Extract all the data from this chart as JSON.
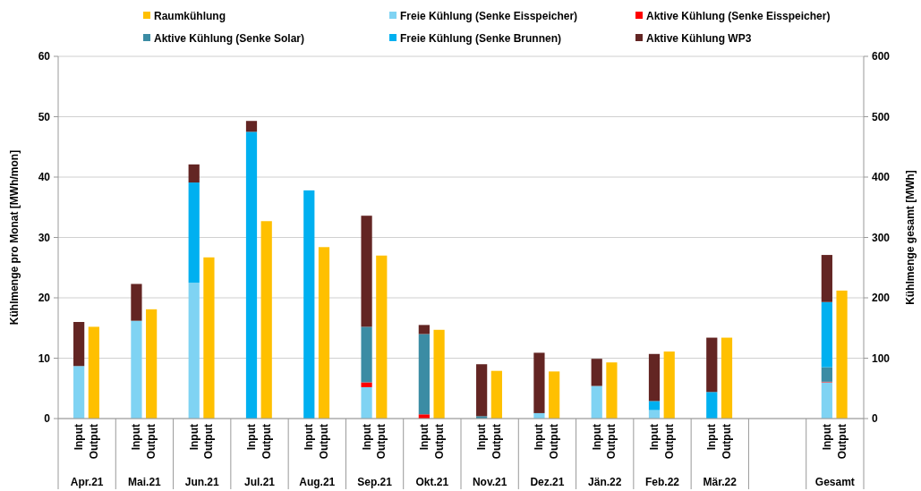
{
  "chart_data": {
    "type": "bar",
    "stacked": true,
    "ylabel": "Kühlmenge pro Monat [MWh/mon]",
    "y2label": "Kühlmenge gesamt [MWh]",
    "categories": [
      "Input",
      "Output",
      "Input",
      "Output",
      "Input",
      "Output",
      "Input",
      "Output",
      "Input",
      "Output",
      "Input",
      "Output",
      "Input",
      "Output",
      "Input",
      "Output",
      "Input",
      "Output",
      "Input",
      "Output",
      "Input",
      "Output",
      "Input",
      "Output",
      null,
      null,
      "Input",
      "Output"
    ],
    "annotations": [
      "Apr.21",
      "Mai.21",
      "Jun.21",
      "Jul.21",
      "Aug.21",
      "Sep.21",
      "Okt.21",
      "Nov.21",
      "Dez.21",
      "Jän.22",
      "Feb.22",
      "Mär.22",
      "Gesamt"
    ],
    "ylim": [
      0,
      60
    ],
    "yticks": [
      0,
      10,
      20,
      30,
      40,
      50,
      60
    ],
    "y2lim": [
      0,
      600
    ],
    "y2ticks": [
      0,
      100,
      200,
      300,
      400,
      500,
      600
    ],
    "grid": "y",
    "legend": "top",
    "series": [
      {
        "name": "Raumkühlung",
        "color": "#ffc000",
        "values": [
          null,
          15.2,
          null,
          18.1,
          null,
          26.7,
          null,
          32.7,
          null,
          28.4,
          null,
          27.0,
          null,
          14.7,
          null,
          7.9,
          null,
          7.8,
          null,
          9.3,
          null,
          11.1,
          null,
          13.4,
          null,
          null,
          null,
          null
        ]
      },
      {
        "name": "Freie Kühlung (Senke Eisspeicher)",
        "color": "#7fd3f3",
        "values": [
          8.7,
          null,
          16.2,
          null,
          22.5,
          null,
          null,
          null,
          null,
          null,
          5.2,
          null,
          null,
          null,
          null,
          null,
          0.9,
          null,
          5.4,
          null,
          1.4,
          null,
          null,
          null,
          null,
          null,
          null,
          null
        ]
      },
      {
        "name": "Aktive Kühlung (Senke Eisspeicher)",
        "color": "#ff0000",
        "values": [
          null,
          null,
          null,
          null,
          null,
          null,
          null,
          null,
          null,
          null,
          0.8,
          null,
          0.7,
          null,
          null,
          null,
          null,
          null,
          null,
          null,
          null,
          null,
          null,
          null,
          null,
          null,
          null,
          null
        ]
      },
      {
        "name": "Aktive Kühlung (Senke Solar)",
        "color": "#3b8ca4",
        "values": [
          null,
          null,
          null,
          null,
          null,
          null,
          null,
          null,
          null,
          null,
          9.2,
          null,
          13.3,
          null,
          0.4,
          null,
          null,
          null,
          null,
          null,
          null,
          null,
          null,
          null,
          null,
          null,
          null,
          null
        ]
      },
      {
        "name": "Freie Kühlung (Senke Brunnen)",
        "color": "#00b0f0",
        "values": [
          null,
          null,
          null,
          null,
          16.6,
          null,
          47.5,
          null,
          37.8,
          null,
          null,
          null,
          null,
          null,
          null,
          null,
          null,
          null,
          null,
          null,
          1.5,
          null,
          4.4,
          null,
          null,
          null,
          null,
          null
        ]
      },
      {
        "name": "Aktive Kühlung WP3",
        "color": "#632523",
        "values": [
          7.3,
          null,
          6.1,
          null,
          3.0,
          null,
          1.8,
          null,
          null,
          null,
          18.4,
          null,
          1.5,
          null,
          8.6,
          null,
          10.0,
          null,
          4.5,
          null,
          7.8,
          null,
          9.0,
          null,
          null,
          null,
          null,
          null
        ]
      },
      {
        "axis": "y2",
        "color": "#ffc000",
        "values": [
          null,
          null,
          null,
          null,
          null,
          null,
          null,
          null,
          null,
          null,
          null,
          null,
          null,
          null,
          null,
          null,
          null,
          null,
          null,
          null,
          null,
          null,
          null,
          null,
          null,
          null,
          null,
          212
        ]
      },
      {
        "axis": "y2",
        "color": "#7fd3f3",
        "values": [
          null,
          null,
          null,
          null,
          null,
          null,
          null,
          null,
          null,
          null,
          null,
          null,
          null,
          null,
          null,
          null,
          null,
          null,
          null,
          null,
          null,
          null,
          null,
          null,
          null,
          null,
          60,
          null
        ]
      },
      {
        "axis": "y2",
        "color": "#ff0000",
        "values": [
          null,
          null,
          null,
          null,
          null,
          null,
          null,
          null,
          null,
          null,
          null,
          null,
          null,
          null,
          null,
          null,
          null,
          null,
          null,
          null,
          null,
          null,
          null,
          null,
          null,
          null,
          1,
          null
        ]
      },
      {
        "axis": "y2",
        "color": "#3b8ca4",
        "values": [
          null,
          null,
          null,
          null,
          null,
          null,
          null,
          null,
          null,
          null,
          null,
          null,
          null,
          null,
          null,
          null,
          null,
          null,
          null,
          null,
          null,
          null,
          null,
          null,
          null,
          null,
          24,
          null
        ]
      },
      {
        "axis": "y2",
        "color": "#00b0f0",
        "values": [
          null,
          null,
          null,
          null,
          null,
          null,
          null,
          null,
          null,
          null,
          null,
          null,
          null,
          null,
          null,
          null,
          null,
          null,
          null,
          null,
          null,
          null,
          null,
          null,
          null,
          null,
          108,
          null
        ]
      },
      {
        "axis": "y2",
        "color": "#632523",
        "values": [
          null,
          null,
          null,
          null,
          null,
          null,
          null,
          null,
          null,
          null,
          null,
          null,
          null,
          null,
          null,
          null,
          null,
          null,
          null,
          null,
          null,
          null,
          null,
          null,
          null,
          null,
          78,
          null
        ]
      }
    ]
  }
}
